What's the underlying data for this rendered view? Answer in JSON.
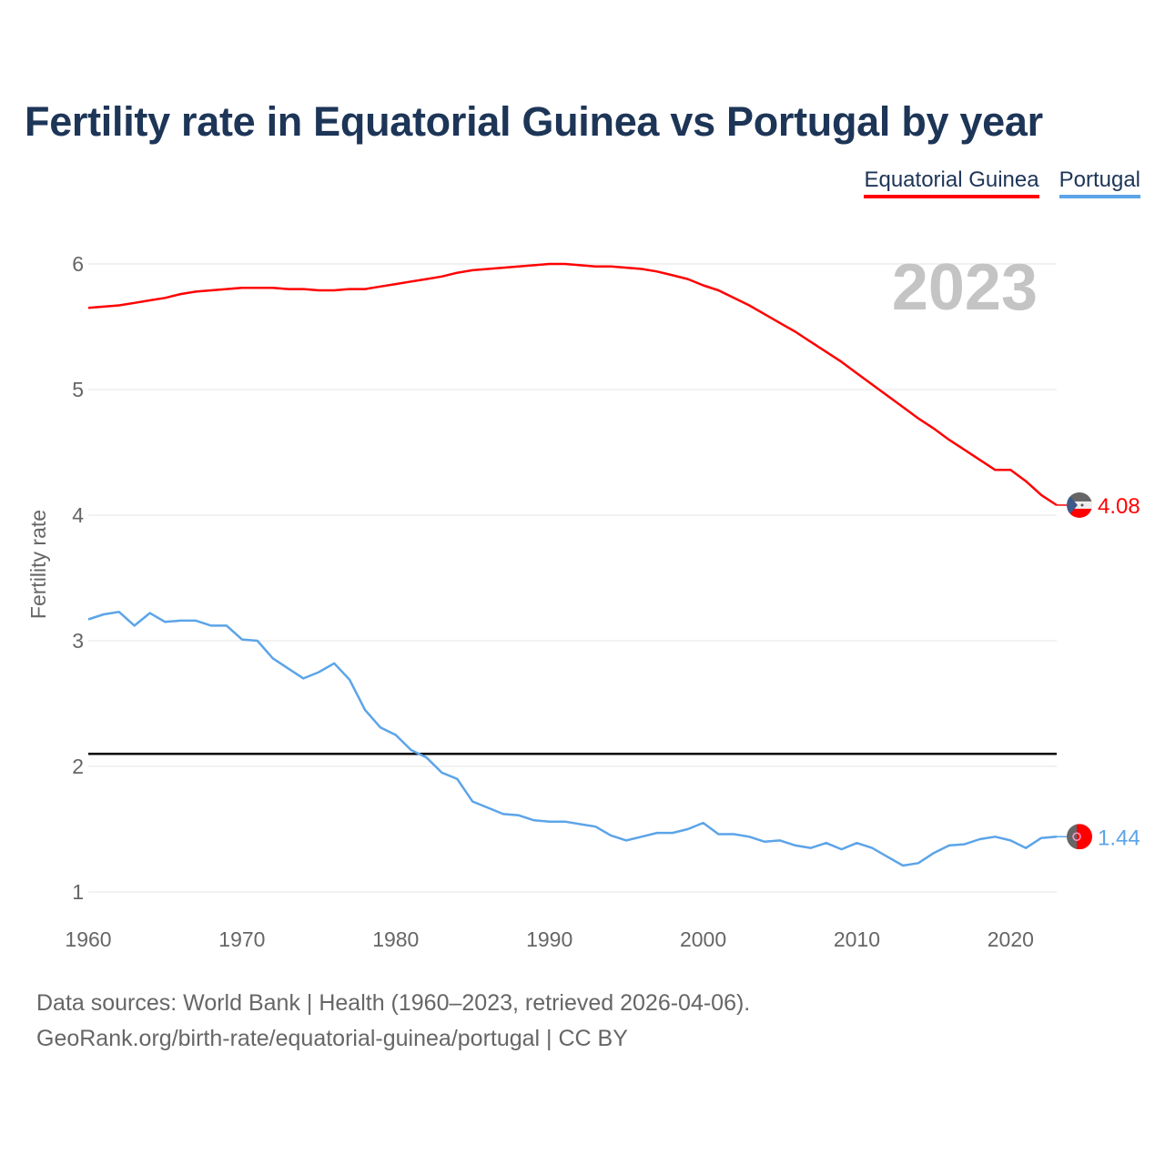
{
  "chart_data": {
    "type": "line",
    "title": "Fertility rate in Equatorial Guinea vs Portugal by year",
    "xlabel": "",
    "ylabel": "Fertility rate",
    "xlim": [
      1960,
      2023
    ],
    "ylim": [
      1,
      6
    ],
    "x_ticks": [
      1960,
      1970,
      1980,
      1990,
      2000,
      2010,
      2020
    ],
    "y_ticks": [
      1,
      2,
      3,
      4,
      5,
      6
    ],
    "grid": true,
    "legend_position": "top-right",
    "year_label": "2023",
    "reference_line": {
      "value": 2.1,
      "color": "#000000"
    },
    "x_start": 1960,
    "series": [
      {
        "name": "Equatorial Guinea",
        "color": "#ff0000",
        "end_label": "4.08",
        "values": [
          5.65,
          5.66,
          5.67,
          5.69,
          5.71,
          5.73,
          5.76,
          5.78,
          5.79,
          5.8,
          5.81,
          5.81,
          5.81,
          5.8,
          5.8,
          5.79,
          5.79,
          5.8,
          5.8,
          5.82,
          5.84,
          5.86,
          5.88,
          5.9,
          5.93,
          5.95,
          5.96,
          5.97,
          5.98,
          5.99,
          6.0,
          6.0,
          5.99,
          5.98,
          5.98,
          5.97,
          5.96,
          5.94,
          5.91,
          5.88,
          5.83,
          5.79,
          5.73,
          5.67,
          5.6,
          5.53,
          5.46,
          5.38,
          5.3,
          5.22,
          5.13,
          5.04,
          4.95,
          4.86,
          4.77,
          4.69,
          4.6,
          4.52,
          4.44,
          4.36,
          4.36,
          4.27,
          4.16,
          4.08
        ]
      },
      {
        "name": "Portugal",
        "color": "#5ca4e8",
        "end_label": "1.44",
        "values": [
          3.17,
          3.21,
          3.23,
          3.12,
          3.22,
          3.15,
          3.16,
          3.16,
          3.12,
          3.12,
          3.01,
          3.0,
          2.86,
          2.78,
          2.7,
          2.75,
          2.82,
          2.69,
          2.45,
          2.31,
          2.25,
          2.13,
          2.07,
          1.95,
          1.9,
          1.72,
          1.67,
          1.62,
          1.61,
          1.57,
          1.56,
          1.56,
          1.54,
          1.52,
          1.45,
          1.41,
          1.44,
          1.47,
          1.47,
          1.5,
          1.55,
          1.46,
          1.46,
          1.44,
          1.4,
          1.41,
          1.37,
          1.35,
          1.39,
          1.34,
          1.39,
          1.35,
          1.28,
          1.21,
          1.23,
          1.31,
          1.37,
          1.38,
          1.42,
          1.44,
          1.41,
          1.35,
          1.43,
          1.44
        ]
      }
    ]
  },
  "footer": {
    "sources": "Data sources: World Bank | Health (1960–2023, retrieved 2026-04-06).",
    "url": "GeoRank.org/birth-rate/equatorial-guinea/portugal | CC BY"
  }
}
